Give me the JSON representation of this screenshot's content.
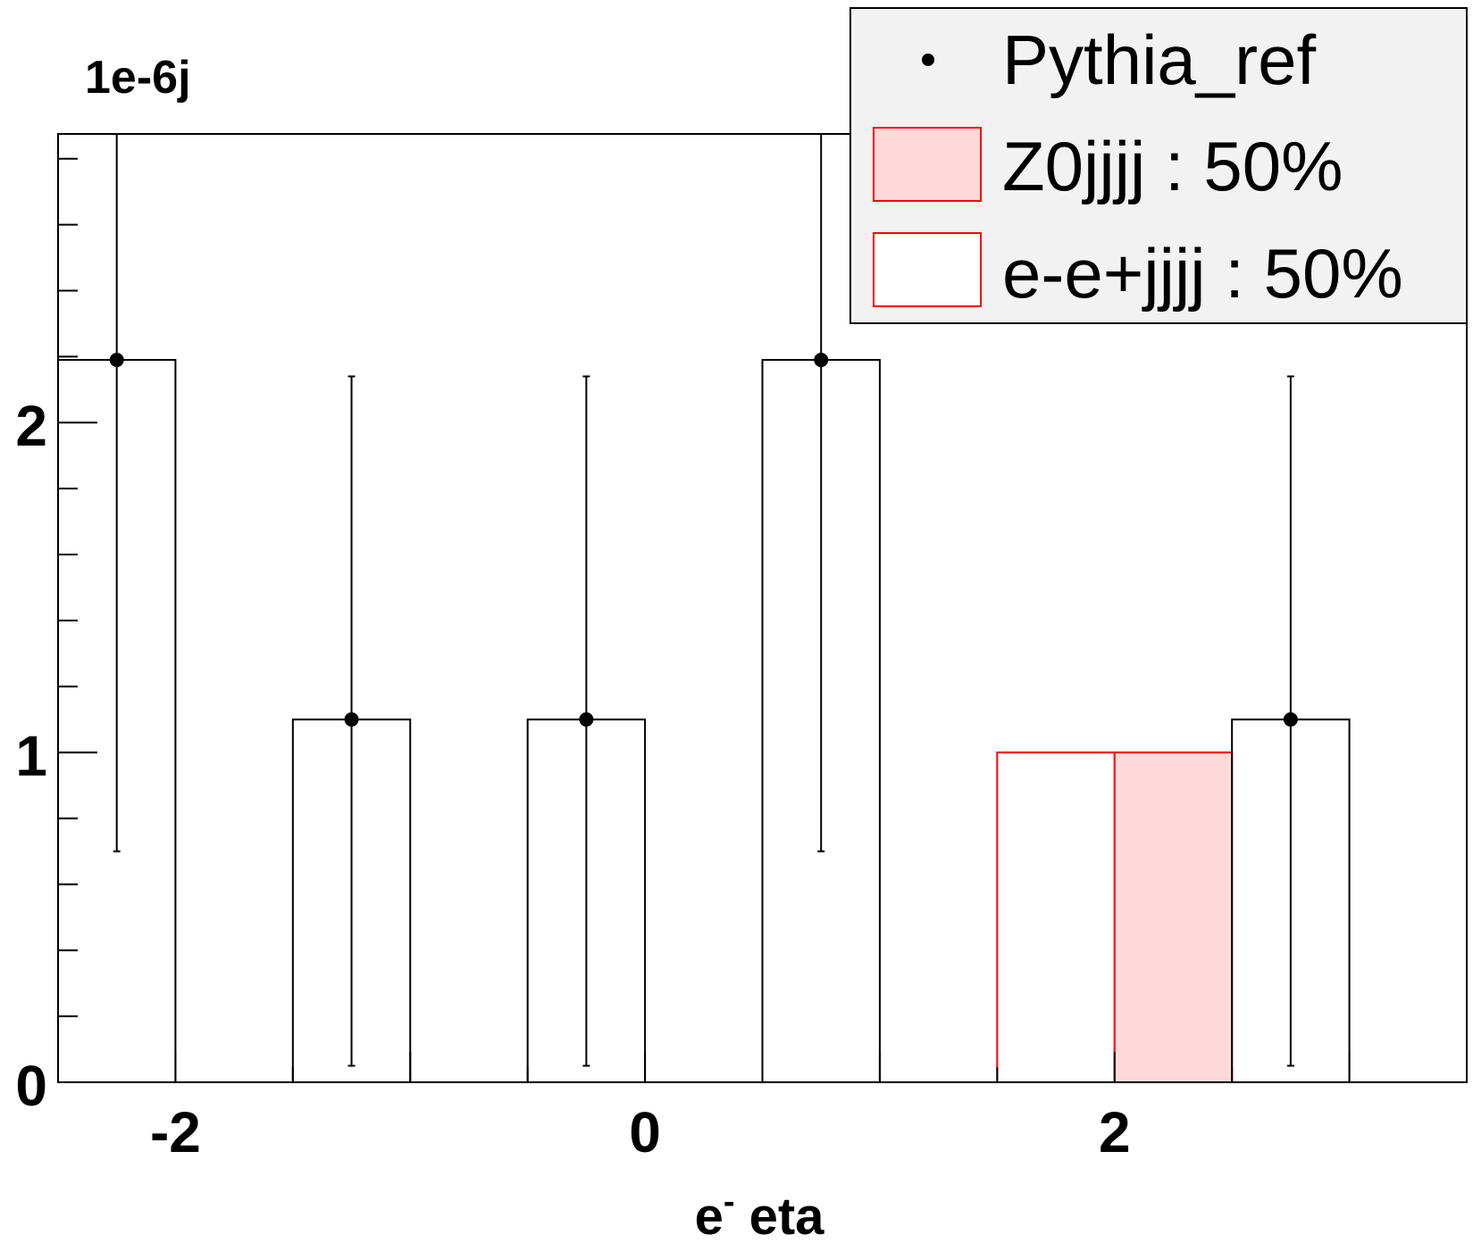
{
  "chart_data": {
    "type": "bar",
    "xlabel_main": "e",
    "xlabel_sup": "-",
    "xlabel_rest": " eta",
    "y_exponent_label": "1e-6j",
    "xlim": [
      -2.5,
      3.5
    ],
    "ylim": [
      0,
      2.875
    ],
    "x_ticks": [
      -2,
      0,
      2
    ],
    "y_ticks": [
      0,
      1,
      2
    ],
    "x_tick_labels": [
      "-2",
      "0",
      "2"
    ],
    "y_tick_labels": [
      "0",
      "1",
      "2"
    ],
    "bin_edges": [
      -2.5,
      -2.0,
      -1.5,
      -1.0,
      -0.5,
      0.0,
      0.5,
      1.0,
      1.5,
      2.0,
      2.5,
      3.0,
      3.5
    ],
    "series": [
      {
        "name": "Pythia_ref",
        "style": "markers-with-errors",
        "color": "#000000",
        "values": [
          2.19,
          0,
          1.1,
          0,
          1.1,
          0,
          2.19,
          0,
          0,
          0,
          1.1,
          0
        ],
        "err_low": [
          0.7,
          null,
          0.05,
          null,
          0.05,
          null,
          0.7,
          null,
          null,
          null,
          0.05,
          null
        ],
        "err_high": [
          2.875,
          null,
          2.14,
          null,
          2.14,
          null,
          2.875,
          null,
          null,
          null,
          2.14,
          null
        ],
        "histogram": [
          2.19,
          0,
          1.1,
          0,
          1.1,
          0,
          2.19,
          0,
          0,
          0,
          1.1,
          0
        ]
      },
      {
        "name": "Z0jjjj : 50%",
        "style": "filled",
        "color": "#ff0000",
        "fill": "#ffd9d9",
        "values": [
          0,
          0,
          0,
          0,
          0,
          0,
          0,
          0,
          0,
          1.0,
          0,
          0
        ]
      },
      {
        "name": "e-e+jjjj : 50%",
        "style": "outline",
        "color": "#ff0000",
        "fill": "#ffffff",
        "values": [
          0,
          0,
          0,
          0,
          0,
          0,
          0,
          0,
          1.0,
          0,
          0,
          0
        ]
      }
    ],
    "legend_position": "top-right",
    "legend_background": "#f2f2f2",
    "grid": false
  }
}
